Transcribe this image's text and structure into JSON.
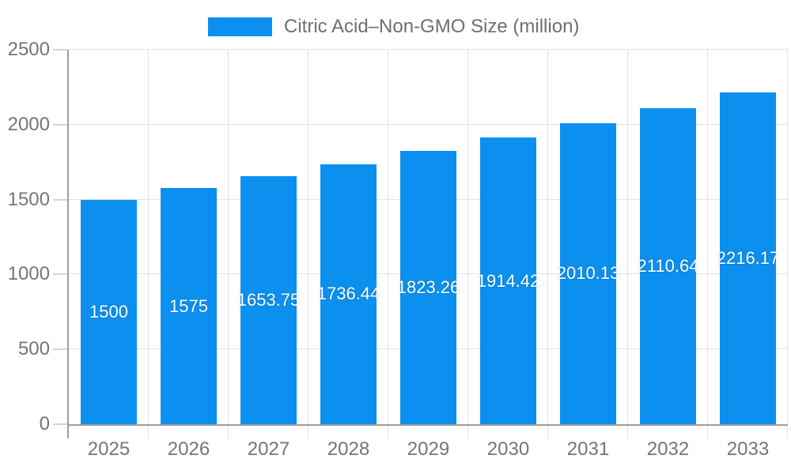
{
  "chart_data": {
    "type": "bar",
    "title": "Citric Acid–Non-GMO Size (million)",
    "categories": [
      "2025",
      "2026",
      "2027",
      "2028",
      "2029",
      "2030",
      "2031",
      "2032",
      "2033"
    ],
    "values": [
      1500,
      1575,
      1653.75,
      1736.44,
      1823.26,
      1914.42,
      2010.13,
      2110.64,
      2216.17
    ],
    "value_labels": [
      "1500",
      "1575",
      "1653.75",
      "1736.44",
      "1823.26",
      "1914.42",
      "2010.13",
      "2110.64",
      "2216.17"
    ],
    "xlabel": "",
    "ylabel": "",
    "ylim": [
      0,
      2500
    ],
    "y_ticks": [
      0,
      500,
      1000,
      1500,
      2000,
      2500
    ],
    "grid": true,
    "legend_position": "top",
    "colors": {
      "bar": "#0b90f0",
      "grid_line": "#e4e4e4",
      "tick_line": "#d6d6d6",
      "axis_line": "#9e9e9e",
      "axis_text": "#757575",
      "legend_text": "#6f6f6f",
      "value_text": "#ffffff",
      "background": "#ffffff"
    }
  }
}
